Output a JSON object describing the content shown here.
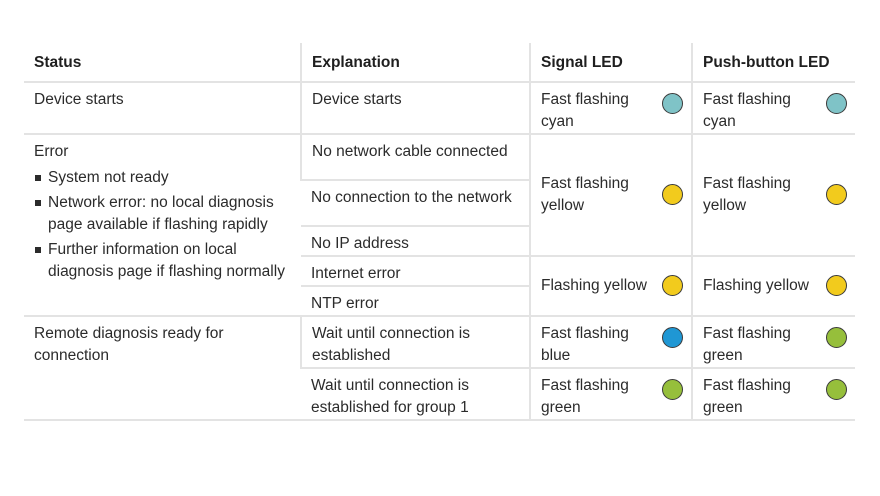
{
  "headers": [
    "Status",
    "Explanation",
    "Signal LED",
    "Push-button LED"
  ],
  "colors": {
    "cyan": "#7fc3c7",
    "yellow": "#f2cb1d",
    "blue": "#1f97d4",
    "green": "#96bf3b"
  },
  "row_start": {
    "status": "Device starts",
    "explanation": "Device starts",
    "signal": {
      "text": "Fast flashing cyan",
      "color": "cyan"
    },
    "button": {
      "text": "Fast flashing cyan",
      "color": "cyan"
    }
  },
  "row_error": {
    "status": "Error",
    "bullets": [
      "System not ready",
      "Network error: no local diagnosis page available if flashing rapidly",
      "Further information on local diagnosis page if flashing normally"
    ],
    "explanations": [
      "No network cable connected",
      "No connection to the network",
      "No IP address",
      "Internet error",
      "NTP error"
    ],
    "signal_fast": {
      "text": "Fast flashing yellow",
      "color": "yellow"
    },
    "button_fast": {
      "text": "Fast flashing yellow",
      "color": "yellow"
    },
    "signal_slow": {
      "text": "Flashing yellow",
      "color": "yellow"
    },
    "button_slow": {
      "text": "Flashing yellow",
      "color": "yellow"
    }
  },
  "row_remote": {
    "status": "Remote diagnosis ready for connection",
    "explanations": [
      "Wait until connection is established",
      "Wait until connection is established for group 1"
    ],
    "signal": [
      {
        "text": "Fast flashing blue",
        "color": "blue"
      },
      {
        "text": "Fast flashing green",
        "color": "green"
      }
    ],
    "button": [
      {
        "text": "Fast flashing green",
        "color": "green"
      },
      {
        "text": "Fast flashing green",
        "color": "green"
      }
    ]
  }
}
